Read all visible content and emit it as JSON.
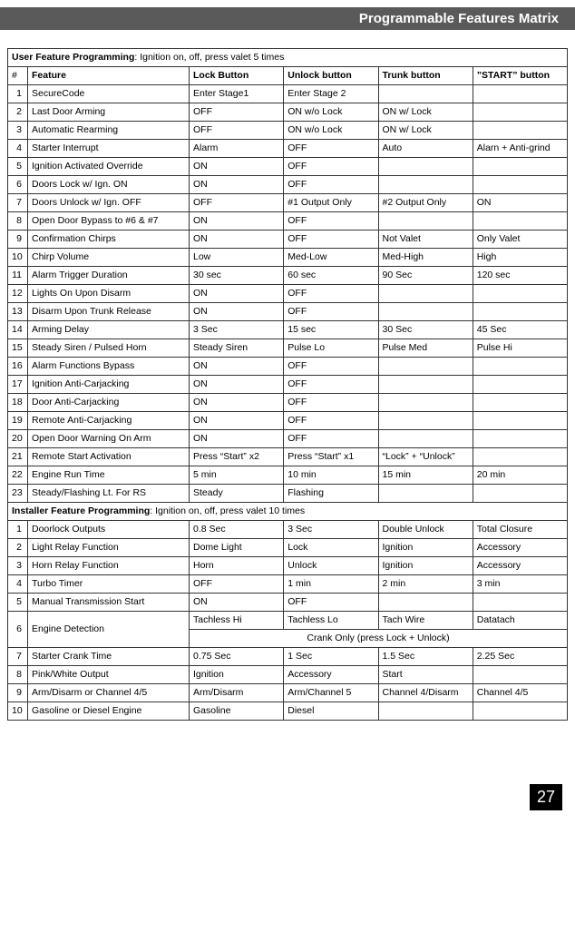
{
  "header": {
    "title": "Programmable Features Matrix"
  },
  "page_number": "27",
  "section_user": {
    "label_bold": "User Feature Programming",
    "label_rest": ": Ignition on, off, press valet 5 times"
  },
  "section_installer": {
    "label_bold": "Installer Feature Programming",
    "label_rest": ": Ignition on, off, press valet 10 times"
  },
  "columns": {
    "num": "#",
    "feature": "Feature",
    "lock": "Lock Button",
    "unlock": "Unlock button",
    "trunk": "Trunk button",
    "start": "”START” button"
  },
  "user_rows": [
    {
      "n": "1",
      "f": "SecureCode",
      "c1": "Enter Stage1",
      "c2": "Enter Stage 2",
      "c3": "",
      "c4": ""
    },
    {
      "n": "2",
      "f": "Last Door Arming",
      "c1": "OFF",
      "c2": "ON w/o Lock",
      "c3": "ON w/ Lock",
      "c4": ""
    },
    {
      "n": "3",
      "f": "Automatic Rearming",
      "c1": "OFF",
      "c2": "ON w/o Lock",
      "c3": "ON w/ Lock",
      "c4": ""
    },
    {
      "n": "4",
      "f": "Starter Interrupt",
      "c1": "Alarm",
      "c2": "OFF",
      "c3": "Auto",
      "c4": "Alarn + Anti-grind"
    },
    {
      "n": "5",
      "f": "Ignition Activated Override",
      "c1": "ON",
      "c2": "OFF",
      "c3": "",
      "c4": ""
    },
    {
      "n": "6",
      "f": " Doors Lock w/ Ign. ON",
      "c1": "ON",
      "c2": "OFF",
      "c3": "",
      "c4": ""
    },
    {
      "n": "7",
      "f": " Doors Unlock w/ Ign. OFF",
      "c1": "OFF",
      "c2": "#1 Output Only",
      "c3": "#2 Output Only",
      "c4": "ON"
    },
    {
      "n": "8",
      "f": "Open Door Bypass to #6 & #7",
      "c1": "ON",
      "c2": "OFF",
      "c3": "",
      "c4": ""
    },
    {
      "n": "9",
      "f": "Confirmation Chirps",
      "c1": "ON",
      "c2": "OFF",
      "c3": "Not Valet",
      "c4": "Only Valet"
    },
    {
      "n": "10",
      "f": "Chirp Volume",
      "c1": "Low",
      "c2": "Med-Low",
      "c3": "Med-High",
      "c4": "High"
    },
    {
      "n": "11",
      "f": "Alarm Trigger Duration",
      "c1": "30 sec",
      "c2": "60 sec",
      "c3": "90 Sec",
      "c4": "120 sec"
    },
    {
      "n": "12",
      "f": "Lights On Upon Disarm",
      "c1": "ON",
      "c2": "OFF",
      "c3": "",
      "c4": ""
    },
    {
      "n": "13",
      "f": "Disarm Upon Trunk Release",
      "c1": "ON",
      "c2": "OFF",
      "c3": "",
      "c4": ""
    },
    {
      "n": "14",
      "f": "Arming Delay",
      "c1": "3 Sec",
      "c2": "15 sec",
      "c3": "30 Sec",
      "c4": "45 Sec"
    },
    {
      "n": "15",
      "f": "Steady Siren / Pulsed Horn",
      "c1": "Steady Siren",
      "c2": "Pulse Lo",
      "c3": "Pulse Med",
      "c4": "Pulse Hi"
    },
    {
      "n": "16",
      "f": "Alarm Functions Bypass",
      "c1": "ON",
      "c2": "OFF",
      "c3": "",
      "c4": ""
    },
    {
      "n": "17",
      "f": "Ignition Anti-Carjacking",
      "c1": "ON",
      "c2": "OFF",
      "c3": "",
      "c4": ""
    },
    {
      "n": "18",
      "f": "Door Anti-Carjacking",
      "c1": "ON",
      "c2": "OFF",
      "c3": "",
      "c4": ""
    },
    {
      "n": "19",
      "f": "Remote Anti-Carjacking",
      "c1": "ON",
      "c2": "OFF",
      "c3": "",
      "c4": ""
    },
    {
      "n": "20",
      "f": "Open Door Warning On Arm",
      "c1": "ON",
      "c2": "OFF",
      "c3": "",
      "c4": ""
    },
    {
      "n": "21",
      "f": "Remote Start Activation",
      "c1": "Press “Start” x2",
      "c2": "Press “Start” x1",
      "c3": "“Lock” + “Unlock”",
      "c4": ""
    },
    {
      "n": "22",
      "f": "Engine Run Time",
      "c1": "5 min",
      "c2": "10 min",
      "c3": "15 min",
      "c4": "20 min"
    },
    {
      "n": "23",
      "f": "Steady/Flashing Lt. For RS",
      "c1": "Steady",
      "c2": "Flashing",
      "c3": "",
      "c4": ""
    }
  ],
  "installer_rows": [
    {
      "n": "1",
      "f": "Doorlock Outputs",
      "c1": "0.8 Sec",
      "c2": "3 Sec",
      "c3": "Double Unlock",
      "c4": "Total Closure"
    },
    {
      "n": "2",
      "f": "Light Relay Function",
      "c1": "Dome Light",
      "c2": "Lock",
      "c3": "Ignition",
      "c4": "Accessory"
    },
    {
      "n": "3",
      "f": "Horn Relay Function",
      "c1": "Horn",
      "c2": "Unlock",
      "c3": "Ignition",
      "c4": "Accessory"
    },
    {
      "n": "4",
      "f": "Turbo Timer",
      "c1": "OFF",
      "c2": "1 min",
      "c3": "2 min",
      "c4": "3 min"
    },
    {
      "n": "5",
      "f": "Manual Transmission Start",
      "c1": "ON",
      "c2": "OFF",
      "c3": "",
      "c4": ""
    }
  ],
  "engine_detection": {
    "n": "6",
    "f": "Engine Detection",
    "row1": {
      "c1": "Tachless Hi",
      "c2": "Tachless Lo",
      "c3": "Tach Wire",
      "c4": "Datatach"
    },
    "row2_span": "Crank Only (press Lock + Unlock)"
  },
  "installer_rows_after": [
    {
      "n": "7",
      "f": "Starter Crank Time",
      "c1": "0.75 Sec",
      "c2": "1 Sec",
      "c3": "1.5 Sec",
      "c4": "2.25 Sec"
    },
    {
      "n": "8",
      "f": "Pink/White Output",
      "c1": "Ignition",
      "c2": "Accessory",
      "c3": "Start",
      "c4": ""
    },
    {
      "n": "9",
      "f": "Arm/Disarm or Channel 4/5",
      "c1": "Arm/Disarm",
      "c2": "Arm/Channel 5",
      "c3": "Channel 4/Disarm",
      "c4": "Channel 4/5"
    },
    {
      "n": "10",
      "f": "Gasoline or Diesel Engine",
      "c1": "Gasoline",
      "c2": "Diesel",
      "c3": "",
      "c4": ""
    }
  ]
}
